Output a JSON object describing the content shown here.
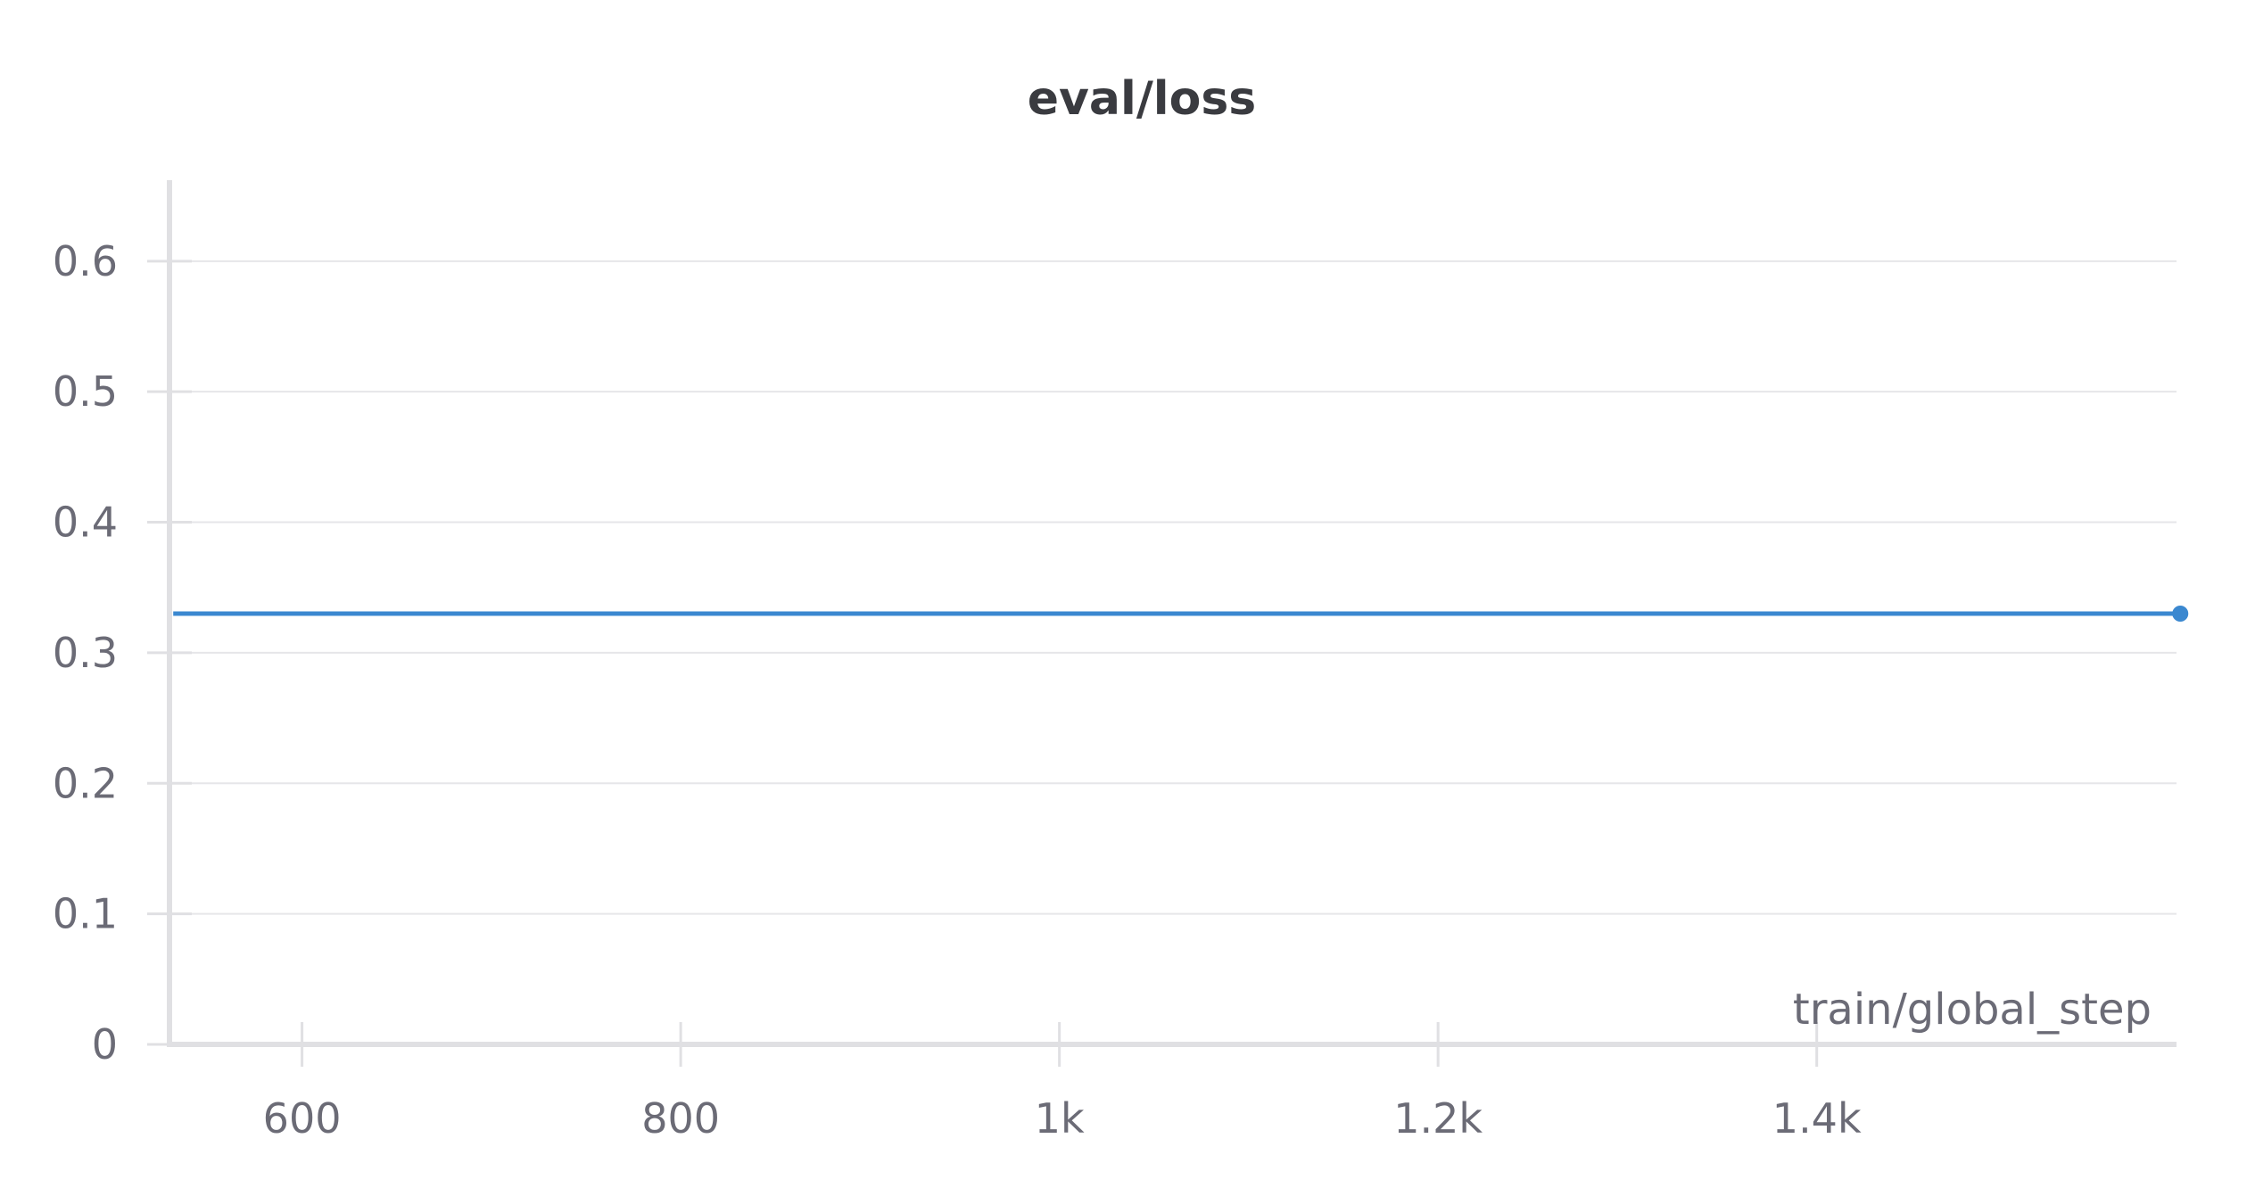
{
  "chart_data": {
    "type": "line",
    "title": "eval/loss",
    "xlabel": "train/global_step",
    "ylabel": "",
    "xlim": [
      530,
      1590
    ],
    "ylim": [
      0,
      0.66
    ],
    "x_ticks": [
      600,
      800,
      1000,
      1200,
      1400
    ],
    "x_tick_labels": [
      "600",
      "800",
      "1k",
      "1.2k",
      "1.4k"
    ],
    "y_ticks": [
      0,
      0.1,
      0.2,
      0.3,
      0.4,
      0.5,
      0.6
    ],
    "y_tick_labels": [
      "0",
      "0.1",
      "0.2",
      "0.3",
      "0.4",
      "0.5",
      "0.6"
    ],
    "grid": true,
    "legend": "none",
    "series": [
      {
        "x": [
          532,
          1592
        ],
        "y": [
          0.33,
          0.33
        ],
        "color": "#3b88d0",
        "marker_last": true
      }
    ]
  }
}
